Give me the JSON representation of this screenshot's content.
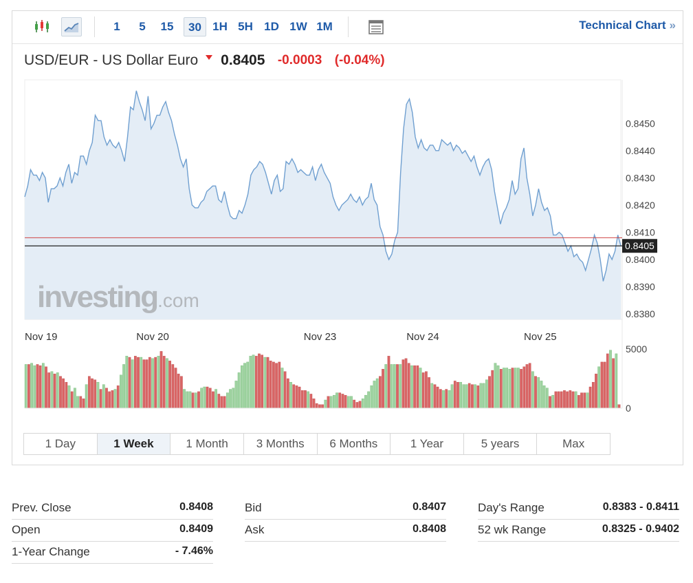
{
  "toolbar": {
    "intervals": [
      "1",
      "5",
      "15",
      "30",
      "1H",
      "5H",
      "1D",
      "1W",
      "1M"
    ],
    "active_interval": "30",
    "technical_chart_label": "Technical Chart",
    "technical_chart_arrows": "»"
  },
  "header": {
    "name": "USD/EUR - US Dollar Euro",
    "price": "0.8405",
    "change": "-0.0003",
    "change_pct": "(-0.04%)"
  },
  "colors": {
    "line": "#6f9fd0",
    "area_fill": "#e4edf6",
    "prev_close_line": "#d04545",
    "current_line": "#222222",
    "volume_up": "#9fd3a1",
    "volume_down": "#d96565",
    "negative": "#e02b2b",
    "accent": "#1e5aa8"
  },
  "watermark": {
    "brand": "investing",
    "suffix": ".com"
  },
  "chart_data": {
    "type": "area",
    "x_labels": [
      "Nov 19",
      "Nov 20",
      "Nov 23",
      "Nov 24",
      "Nov 25"
    ],
    "y_ticks": [
      "0.8450",
      "0.8440",
      "0.8430",
      "0.8420",
      "0.8410",
      "0.8400",
      "0.8390",
      "0.8380"
    ],
    "ylim": [
      0.8378,
      0.8466
    ],
    "current_price_label": "0.8405",
    "current_price": 0.8405,
    "prev_close": 0.8408,
    "price": [
      0.8423,
      0.8427,
      0.8433,
      0.8431,
      0.8431,
      0.8429,
      0.8432,
      0.843,
      0.8421,
      0.8426,
      0.8426,
      0.8427,
      0.843,
      0.8427,
      0.8432,
      0.8435,
      0.8428,
      0.8432,
      0.8431,
      0.8438,
      0.8438,
      0.8435,
      0.844,
      0.8443,
      0.8453,
      0.8451,
      0.8451,
      0.8445,
      0.8442,
      0.8444,
      0.8442,
      0.8441,
      0.8443,
      0.844,
      0.8436,
      0.8445,
      0.8456,
      0.8455,
      0.8462,
      0.8458,
      0.8455,
      0.8451,
      0.846,
      0.8448,
      0.845,
      0.8453,
      0.8453,
      0.8456,
      0.8458,
      0.8454,
      0.8451,
      0.8446,
      0.8442,
      0.8437,
      0.8434,
      0.8437,
      0.8426,
      0.842,
      0.8419,
      0.8419,
      0.8421,
      0.8422,
      0.8425,
      0.8426,
      0.8427,
      0.8427,
      0.8422,
      0.8421,
      0.8425,
      0.842,
      0.8416,
      0.8415,
      0.8415,
      0.8418,
      0.8417,
      0.842,
      0.8424,
      0.8431,
      0.8433,
      0.8434,
      0.8436,
      0.8435,
      0.8432,
      0.8428,
      0.8424,
      0.8429,
      0.8431,
      0.8425,
      0.8426,
      0.8436,
      0.8435,
      0.8437,
      0.8435,
      0.8432,
      0.8433,
      0.8432,
      0.8431,
      0.8431,
      0.8434,
      0.8429,
      0.8433,
      0.8435,
      0.8432,
      0.843,
      0.8428,
      0.8423,
      0.842,
      0.8418,
      0.842,
      0.8421,
      0.8422,
      0.8424,
      0.8422,
      0.8421,
      0.8423,
      0.842,
      0.8422,
      0.8423,
      0.8428,
      0.8422,
      0.842,
      0.8412,
      0.8409,
      0.8403,
      0.84,
      0.8402,
      0.8407,
      0.841,
      0.8432,
      0.8448,
      0.8457,
      0.8459,
      0.8454,
      0.8445,
      0.8441,
      0.8444,
      0.8441,
      0.844,
      0.8442,
      0.8442,
      0.844,
      0.844,
      0.8444,
      0.8443,
      0.8442,
      0.8443,
      0.844,
      0.8442,
      0.8441,
      0.8439,
      0.844,
      0.8438,
      0.8436,
      0.8438,
      0.8434,
      0.8431,
      0.8434,
      0.8436,
      0.8437,
      0.8433,
      0.8425,
      0.8419,
      0.8413,
      0.8417,
      0.8419,
      0.8422,
      0.8429,
      0.8424,
      0.8426,
      0.8437,
      0.8441,
      0.843,
      0.8424,
      0.8416,
      0.842,
      0.8426,
      0.8421,
      0.8418,
      0.8419,
      0.8416,
      0.8409,
      0.8409,
      0.841,
      0.8409,
      0.8406,
      0.8403,
      0.8405,
      0.8401,
      0.8402,
      0.84,
      0.8399,
      0.8396,
      0.84,
      0.8404,
      0.8409,
      0.8406,
      0.84,
      0.8392,
      0.8396,
      0.8402,
      0.84,
      0.8403,
      0.8409,
      0.8405
    ],
    "volume_ylim": [
      0,
      5000
    ],
    "volume_ticks": [
      "5000",
      "0"
    ],
    "volume": [
      3700,
      3700,
      3800,
      3600,
      3700,
      3600,
      3800,
      3500,
      3000,
      3100,
      2900,
      3000,
      2700,
      2500,
      2200,
      1900,
      1400,
      1700,
      1000,
      1000,
      800,
      2000,
      2700,
      2500,
      2400,
      2200,
      1600,
      2000,
      1700,
      1400,
      1500,
      1600,
      1900,
      2800,
      3700,
      4400,
      4300,
      4100,
      4400,
      4300,
      4300,
      4100,
      4100,
      4300,
      4200,
      4300,
      4400,
      4800,
      4400,
      4200,
      4000,
      3700,
      3400,
      2900,
      2700,
      1600,
      1400,
      1400,
      1300,
      1300,
      1400,
      1700,
      1800,
      1800,
      1700,
      1400,
      1600,
      1200,
      1000,
      1000,
      1300,
      1600,
      1700,
      2300,
      3000,
      3600,
      3800,
      3900,
      4400,
      4500,
      4400,
      4600,
      4500,
      4300,
      4300,
      4000,
      3900,
      3800,
      3900,
      3400,
      3100,
      2500,
      2200,
      2000,
      1900,
      1800,
      1500,
      1500,
      1400,
      1200,
      800,
      400,
      300,
      300,
      700,
      1000,
      1000,
      1100,
      1300,
      1300,
      1200,
      1100,
      1000,
      1000,
      700,
      500,
      600,
      800,
      1100,
      1400,
      1900,
      2300,
      2500,
      2700,
      3300,
      3700,
      4400,
      3700,
      3700,
      3700,
      3700,
      4100,
      4200,
      3800,
      3600,
      3600,
      3600,
      3400,
      3000,
      3100,
      2600,
      2100,
      2000,
      1800,
      1600,
      1500,
      1600,
      1500,
      2000,
      2300,
      2200,
      2200,
      2000,
      2000,
      2100,
      2000,
      2000,
      1900,
      2100,
      2100,
      2400,
      2700,
      3200,
      3800,
      3600,
      3300,
      3400,
      3400,
      3300,
      3400,
      3400,
      3400,
      3300,
      3500,
      3700,
      3800,
      3100,
      2700,
      2600,
      2300,
      1900,
      1700,
      1000,
      1100,
      1400,
      1400,
      1400,
      1500,
      1400,
      1500,
      1400,
      1400,
      1100,
      1300,
      1300,
      1300,
      1800,
      2200,
      2900,
      3500,
      3900,
      3900,
      4600,
      4900,
      4200,
      4600,
      300
    ],
    "volume_up_flags": [
      1,
      0,
      1,
      1,
      0,
      0,
      1,
      0,
      0,
      1,
      0,
      1,
      0,
      0,
      0,
      1,
      0,
      1,
      1,
      0,
      0,
      1,
      0,
      0,
      0,
      1,
      0,
      1,
      0,
      0,
      0,
      1,
      0,
      1,
      1,
      1,
      0,
      1,
      0,
      0,
      1,
      0,
      0,
      0,
      1,
      0,
      1,
      0,
      0,
      1,
      0,
      0,
      0,
      0,
      0,
      1,
      1,
      1,
      0,
      1,
      0,
      1,
      1,
      0,
      0,
      0,
      1,
      0,
      0,
      0,
      1,
      1,
      1,
      1,
      1,
      1,
      1,
      1,
      1,
      1,
      0,
      0,
      0,
      1,
      0,
      0,
      0,
      0,
      0,
      1,
      0,
      0,
      1,
      0,
      0,
      0,
      0,
      0,
      1,
      0,
      0,
      0,
      0,
      0,
      1,
      0,
      1,
      1,
      1,
      0,
      0,
      0,
      1,
      1,
      0,
      0,
      0,
      1,
      1,
      1,
      1,
      1,
      1,
      0,
      0,
      1,
      0,
      1,
      1,
      0,
      1,
      0,
      0,
      0,
      1,
      0,
      0,
      1,
      0,
      0,
      0,
      1,
      0,
      0,
      0,
      1,
      0,
      1,
      1,
      0,
      0,
      1,
      1,
      1,
      0,
      0,
      1,
      0,
      1,
      1,
      1,
      0,
      0,
      1,
      1,
      0,
      1,
      1,
      1,
      0,
      1,
      1,
      0,
      0,
      0,
      0,
      1,
      0,
      1,
      1,
      1,
      1,
      0,
      1,
      0,
      0,
      0,
      0,
      0,
      0,
      0,
      1,
      0,
      0,
      0,
      1,
      0,
      0,
      0,
      1,
      0,
      0,
      0,
      1,
      0,
      1,
      0,
      0,
      0
    ]
  },
  "range_buttons": [
    "1 Day",
    "1 Week",
    "1 Month",
    "3 Months",
    "6 Months",
    "1 Year",
    "5 years",
    "Max"
  ],
  "active_range": "1 Week",
  "stats": {
    "col1": [
      {
        "label": "Prev. Close",
        "value": "0.8408"
      },
      {
        "label": "Open",
        "value": "0.8409"
      },
      {
        "label": "1-Year Change",
        "value": "- 7.46%"
      }
    ],
    "col2": [
      {
        "label": "Bid",
        "value": "0.8407"
      },
      {
        "label": "Ask",
        "value": "0.8408"
      }
    ],
    "col3": [
      {
        "label": "Day's Range",
        "value": "0.8383 - 0.8411"
      },
      {
        "label": "52 wk Range",
        "value": "0.8325 - 0.9402"
      }
    ]
  }
}
